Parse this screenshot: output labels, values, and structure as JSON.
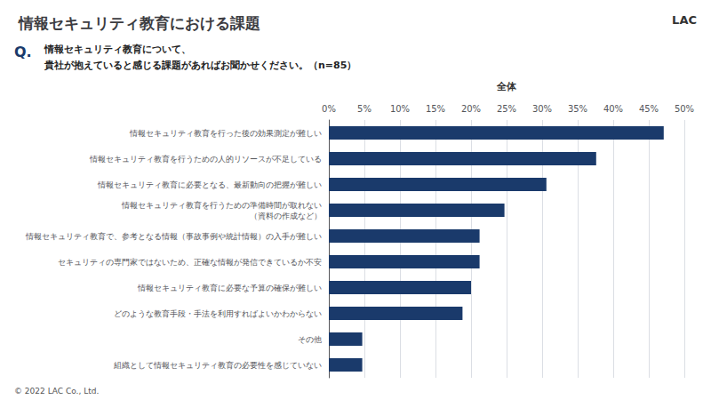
{
  "chart_data": {
    "type": "bar",
    "title": "情報セキュリティ教育における課題",
    "annotations": [
      "LAC",
      "Q.",
      "情報セキュリティ教育について、",
      "貴社が抱えていると感じる課題があればお聞かせください。",
      "（n=85）",
      "全体",
      "© 2022 LAC Co., Ltd."
    ],
    "categories": [
      "情報セキュリティ教育を行った後の効果測定が難しい",
      "情報セキュリティ教育を行うための人的リソースが不足している",
      "情報セキュリティ教育に必要となる、最新動向の把握が難しい",
      "情報セキュリティ教育を行うための準備時間が取れない\n（資料の作成など）",
      "情報セキュリティ教育で、参考となる情報（事故事例や統計情報）の入手が難しい",
      "セキュリティの専門家ではないため、正確な情報が発信できているか不安",
      "情報セキュリティ教育に必要な予算の確保が難しい",
      "どのような教育手段・手法を利用すればよいかわからない",
      "その他",
      "組織として情報セキュリティ教育の必要性を感じていない"
    ],
    "values": [
      47.1,
      37.6,
      30.6,
      24.7,
      21.2,
      21.2,
      20.0,
      18.8,
      4.7,
      4.7
    ],
    "color": "#1a3a6b",
    "orientation": "horizontal",
    "xlim": [
      0,
      50
    ],
    "xticks": [
      {
        "value": 0,
        "label": "0%"
      },
      {
        "value": 5,
        "label": "5%"
      },
      {
        "value": 10,
        "label": "10%"
      },
      {
        "value": 15,
        "label": "15%"
      },
      {
        "value": 20,
        "label": "20%"
      },
      {
        "value": 25,
        "label": "25%"
      },
      {
        "value": 30,
        "label": "30%"
      },
      {
        "value": 35,
        "label": "35%"
      },
      {
        "value": 40,
        "label": "40%"
      },
      {
        "value": 45,
        "label": "45%"
      },
      {
        "value": 50,
        "label": "50%"
      }
    ],
    "grid": true
  }
}
